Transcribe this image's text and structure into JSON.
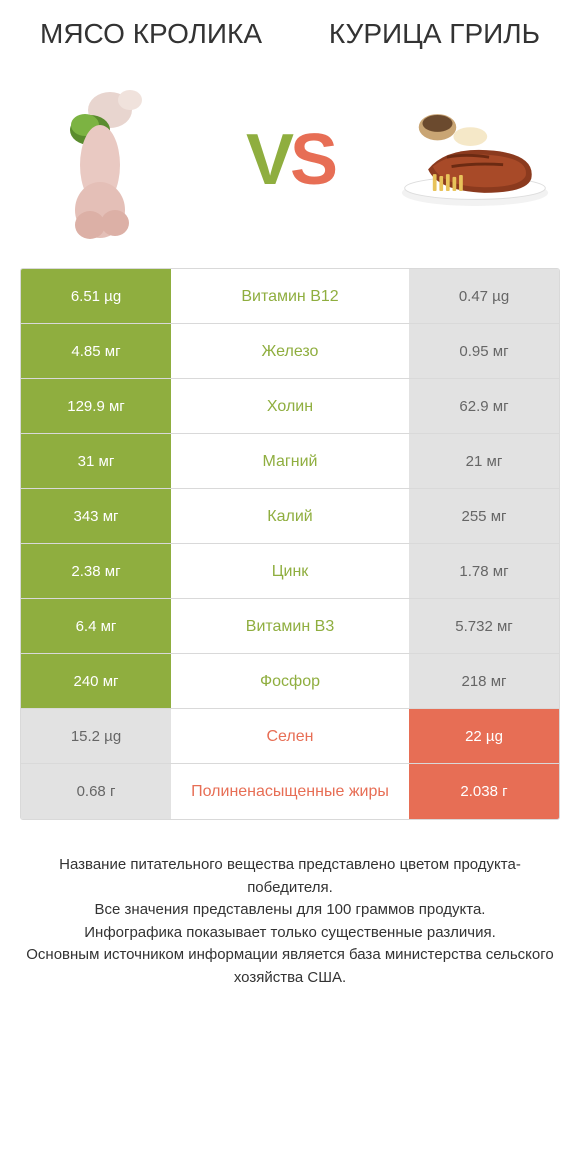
{
  "colors": {
    "green": "#8fae3f",
    "red": "#e76e55",
    "gray_cell": "#e2e2e2",
    "gray_text": "#666666",
    "row_border": "#d9d9d9"
  },
  "header": {
    "left_title": "МЯСО КРОЛИКА",
    "right_title": "КУРИЦА ГРИЛЬ",
    "vs_v": "V",
    "vs_s": "S"
  },
  "rows": [
    {
      "nutrient": "Витамин B12",
      "left": "6.51 µg",
      "right": "0.47 µg",
      "winner": "left"
    },
    {
      "nutrient": "Железо",
      "left": "4.85 мг",
      "right": "0.95 мг",
      "winner": "left"
    },
    {
      "nutrient": "Холин",
      "left": "129.9 мг",
      "right": "62.9 мг",
      "winner": "left"
    },
    {
      "nutrient": "Магний",
      "left": "31 мг",
      "right": "21 мг",
      "winner": "left"
    },
    {
      "nutrient": "Калий",
      "left": "343 мг",
      "right": "255 мг",
      "winner": "left"
    },
    {
      "nutrient": "Цинк",
      "left": "2.38 мг",
      "right": "1.78 мг",
      "winner": "left"
    },
    {
      "nutrient": "Витамин B3",
      "left": "6.4 мг",
      "right": "5.732 мг",
      "winner": "left"
    },
    {
      "nutrient": "Фосфор",
      "left": "240 мг",
      "right": "218 мг",
      "winner": "left"
    },
    {
      "nutrient": "Селен",
      "left": "15.2 µg",
      "right": "22 µg",
      "winner": "right"
    },
    {
      "nutrient": "Полиненасыщенные жиры",
      "left": "0.68 г",
      "right": "2.038 г",
      "winner": "right"
    }
  ],
  "footer": {
    "line1": "Название питательного вещества представлено цветом продукта-победителя.",
    "line2": "Все значения представлены для 100 граммов продукта.",
    "line3": "Инфографика показывает только существенные различия.",
    "line4": "Основным источником информации является база министерства сельского хозяйства США."
  }
}
